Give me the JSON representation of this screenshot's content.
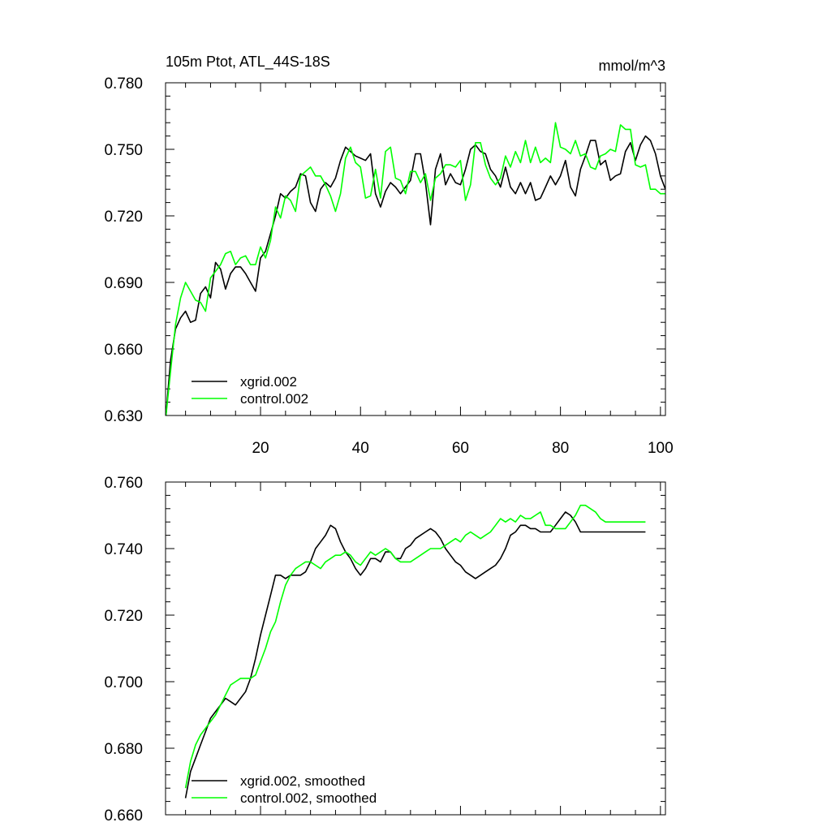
{
  "colors": {
    "xgrid": "#000000",
    "control": "#00ff00",
    "axis": "#000000",
    "background": "#ffffff"
  },
  "chart_data": [
    {
      "type": "line",
      "title": "105m Ptot, ATL_44S-18S",
      "units": "mmol/m^3",
      "xlim": [
        1,
        101
      ],
      "ylim": [
        0.63,
        0.78
      ],
      "yticks": [
        0.63,
        0.66,
        0.69,
        0.72,
        0.75,
        0.78
      ],
      "yticklabels": [
        "0.630",
        "0.660",
        "0.690",
        "0.720",
        "0.750",
        "0.780"
      ],
      "xticks": [
        20,
        40,
        60,
        80,
        100
      ],
      "xticklabels": [
        "20",
        "40",
        "60",
        "80",
        "100"
      ],
      "legend": [
        "xgrid.002",
        "control.002"
      ],
      "series": [
        {
          "name": "xgrid.002",
          "color": "#000000",
          "x": [
            1,
            2,
            3,
            4,
            5,
            6,
            7,
            8,
            9,
            10,
            11,
            12,
            13,
            14,
            15,
            16,
            17,
            18,
            19,
            20,
            21,
            22,
            23,
            24,
            25,
            26,
            27,
            28,
            29,
            30,
            31,
            32,
            33,
            34,
            35,
            36,
            37,
            38,
            39,
            40,
            41,
            42,
            43,
            44,
            45,
            46,
            47,
            48,
            49,
            50,
            51,
            52,
            53,
            54,
            55,
            56,
            57,
            58,
            59,
            60,
            61,
            62,
            63,
            64,
            65,
            66,
            67,
            68,
            69,
            70,
            71,
            72,
            73,
            74,
            75,
            76,
            77,
            78,
            79,
            80,
            81,
            82,
            83,
            84,
            85,
            86,
            87,
            88,
            89,
            90,
            91,
            92,
            93,
            94,
            95,
            96,
            97,
            98,
            99,
            100,
            101
          ],
          "values": [
            0.628,
            0.655,
            0.669,
            0.674,
            0.677,
            0.672,
            0.673,
            0.685,
            0.688,
            0.683,
            0.699,
            0.696,
            0.687,
            0.694,
            0.697,
            0.697,
            0.694,
            0.69,
            0.686,
            0.701,
            0.704,
            0.712,
            0.72,
            0.73,
            0.728,
            0.731,
            0.733,
            0.739,
            0.738,
            0.726,
            0.722,
            0.732,
            0.735,
            0.733,
            0.737,
            0.745,
            0.751,
            0.749,
            0.747,
            0.746,
            0.745,
            0.748,
            0.73,
            0.724,
            0.731,
            0.735,
            0.733,
            0.73,
            0.733,
            0.736,
            0.748,
            0.748,
            0.735,
            0.716,
            0.741,
            0.748,
            0.734,
            0.739,
            0.735,
            0.734,
            0.741,
            0.75,
            0.752,
            0.749,
            0.748,
            0.741,
            0.738,
            0.733,
            0.742,
            0.733,
            0.73,
            0.735,
            0.73,
            0.735,
            0.727,
            0.728,
            0.733,
            0.738,
            0.734,
            0.738,
            0.745,
            0.733,
            0.729,
            0.741,
            0.747,
            0.754,
            0.754,
            0.743,
            0.745,
            0.736,
            0.738,
            0.739,
            0.749,
            0.753,
            0.745,
            0.752,
            0.756,
            0.754,
            0.748,
            0.738,
            0.732
          ]
        },
        {
          "name": "control.002",
          "color": "#00ff00",
          "x": [
            1,
            2,
            3,
            4,
            5,
            6,
            7,
            8,
            9,
            10,
            11,
            12,
            13,
            14,
            15,
            16,
            17,
            18,
            19,
            20,
            21,
            22,
            23,
            24,
            25,
            26,
            27,
            28,
            29,
            30,
            31,
            32,
            33,
            34,
            35,
            36,
            37,
            38,
            39,
            40,
            41,
            42,
            43,
            44,
            45,
            46,
            47,
            48,
            49,
            50,
            51,
            52,
            53,
            54,
            55,
            56,
            57,
            58,
            59,
            60,
            61,
            62,
            63,
            64,
            65,
            66,
            67,
            68,
            69,
            70,
            71,
            72,
            73,
            74,
            75,
            76,
            77,
            78,
            79,
            80,
            81,
            82,
            83,
            84,
            85,
            86,
            87,
            88,
            89,
            90,
            91,
            92,
            93,
            94,
            95,
            96,
            97,
            98,
            99,
            100,
            101
          ],
          "values": [
            0.628,
            0.65,
            0.671,
            0.683,
            0.69,
            0.686,
            0.682,
            0.681,
            0.677,
            0.692,
            0.695,
            0.698,
            0.703,
            0.704,
            0.698,
            0.701,
            0.702,
            0.698,
            0.698,
            0.706,
            0.701,
            0.709,
            0.724,
            0.719,
            0.729,
            0.727,
            0.722,
            0.738,
            0.74,
            0.742,
            0.738,
            0.738,
            0.734,
            0.729,
            0.722,
            0.73,
            0.746,
            0.751,
            0.744,
            0.742,
            0.728,
            0.729,
            0.741,
            0.728,
            0.749,
            0.751,
            0.737,
            0.736,
            0.73,
            0.74,
            0.74,
            0.735,
            0.739,
            0.727,
            0.737,
            0.739,
            0.743,
            0.743,
            0.742,
            0.745,
            0.727,
            0.734,
            0.753,
            0.753,
            0.743,
            0.737,
            0.734,
            0.737,
            0.747,
            0.742,
            0.749,
            0.744,
            0.754,
            0.744,
            0.751,
            0.744,
            0.746,
            0.744,
            0.762,
            0.751,
            0.75,
            0.748,
            0.754,
            0.747,
            0.748,
            0.742,
            0.741,
            0.747,
            0.748,
            0.75,
            0.749,
            0.761,
            0.759,
            0.759,
            0.743,
            0.742,
            0.743,
            0.732,
            0.732,
            0.73,
            0.73
          ]
        }
      ]
    },
    {
      "type": "line",
      "xlim": [
        1,
        101
      ],
      "ylim": [
        0.66,
        0.76
      ],
      "yticks": [
        0.66,
        0.68,
        0.7,
        0.72,
        0.74,
        0.76
      ],
      "yticklabels": [
        "0.660",
        "0.680",
        "0.700",
        "0.720",
        "0.740",
        "0.760"
      ],
      "xticks": [
        20,
        40,
        60,
        80,
        100
      ],
      "xticklabels": [],
      "legend": [
        "xgrid.002, smoothed",
        "control.002, smoothed"
      ],
      "series": [
        {
          "name": "xgrid.002, smoothed",
          "color": "#000000",
          "x": [
            5,
            6,
            7,
            8,
            9,
            10,
            11,
            12,
            13,
            14,
            15,
            16,
            17,
            18,
            19,
            20,
            21,
            22,
            23,
            24,
            25,
            26,
            27,
            28,
            29,
            30,
            31,
            32,
            33,
            34,
            35,
            36,
            37,
            38,
            39,
            40,
            41,
            42,
            43,
            44,
            45,
            46,
            47,
            48,
            49,
            50,
            51,
            52,
            53,
            54,
            55,
            56,
            57,
            58,
            59,
            60,
            61,
            62,
            63,
            64,
            65,
            66,
            67,
            68,
            69,
            70,
            71,
            72,
            73,
            74,
            75,
            76,
            77,
            78,
            79,
            80,
            81,
            82,
            83,
            84,
            85,
            86,
            87,
            88,
            89,
            90,
            91,
            92,
            93,
            94,
            95,
            96,
            97
          ],
          "values": [
            0.665,
            0.673,
            0.677,
            0.681,
            0.685,
            0.689,
            0.691,
            0.693,
            0.695,
            0.694,
            0.693,
            0.695,
            0.697,
            0.701,
            0.707,
            0.714,
            0.72,
            0.726,
            0.732,
            0.732,
            0.731,
            0.732,
            0.732,
            0.732,
            0.733,
            0.736,
            0.74,
            0.742,
            0.744,
            0.747,
            0.746,
            0.742,
            0.739,
            0.737,
            0.734,
            0.732,
            0.734,
            0.737,
            0.737,
            0.736,
            0.739,
            0.739,
            0.737,
            0.737,
            0.74,
            0.741,
            0.743,
            0.744,
            0.745,
            0.746,
            0.745,
            0.743,
            0.74,
            0.738,
            0.736,
            0.735,
            0.733,
            0.732,
            0.731,
            0.732,
            0.733,
            0.734,
            0.735,
            0.737,
            0.74,
            0.744,
            0.745,
            0.747,
            0.747,
            0.746,
            0.746,
            0.745,
            0.745,
            0.745,
            0.747,
            0.749,
            0.751,
            0.75,
            0.748,
            0.745,
            0.745,
            0.745,
            0.745,
            0.745,
            0.745,
            0.745,
            0.745,
            0.745,
            0.745,
            0.745,
            0.745,
            0.745,
            0.745
          ]
        },
        {
          "name": "control.002, smoothed",
          "color": "#00ff00",
          "x": [
            5,
            6,
            7,
            8,
            9,
            10,
            11,
            12,
            13,
            14,
            15,
            16,
            17,
            18,
            19,
            20,
            21,
            22,
            23,
            24,
            25,
            26,
            27,
            28,
            29,
            30,
            31,
            32,
            33,
            34,
            35,
            36,
            37,
            38,
            39,
            40,
            41,
            42,
            43,
            44,
            45,
            46,
            47,
            48,
            49,
            50,
            51,
            52,
            53,
            54,
            55,
            56,
            57,
            58,
            59,
            60,
            61,
            62,
            63,
            64,
            65,
            66,
            67,
            68,
            69,
            70,
            71,
            72,
            73,
            74,
            75,
            76,
            77,
            78,
            79,
            80,
            81,
            82,
            83,
            84,
            85,
            86,
            87,
            88,
            89,
            90,
            91,
            92,
            93,
            94,
            95,
            96,
            97
          ],
          "values": [
            0.668,
            0.676,
            0.681,
            0.684,
            0.686,
            0.688,
            0.69,
            0.693,
            0.696,
            0.699,
            0.7,
            0.701,
            0.701,
            0.701,
            0.702,
            0.706,
            0.71,
            0.715,
            0.718,
            0.724,
            0.729,
            0.732,
            0.734,
            0.735,
            0.736,
            0.736,
            0.735,
            0.734,
            0.736,
            0.737,
            0.738,
            0.738,
            0.739,
            0.738,
            0.736,
            0.735,
            0.737,
            0.739,
            0.738,
            0.739,
            0.74,
            0.739,
            0.737,
            0.736,
            0.736,
            0.736,
            0.737,
            0.738,
            0.739,
            0.74,
            0.74,
            0.74,
            0.741,
            0.742,
            0.743,
            0.742,
            0.744,
            0.745,
            0.744,
            0.743,
            0.744,
            0.745,
            0.747,
            0.749,
            0.748,
            0.749,
            0.748,
            0.75,
            0.749,
            0.749,
            0.75,
            0.751,
            0.747,
            0.747,
            0.746,
            0.746,
            0.746,
            0.748,
            0.75,
            0.753,
            0.753,
            0.752,
            0.751,
            0.749,
            0.748,
            0.748,
            0.748,
            0.748,
            0.748,
            0.748,
            0.748,
            0.748,
            0.748
          ]
        }
      ]
    }
  ]
}
